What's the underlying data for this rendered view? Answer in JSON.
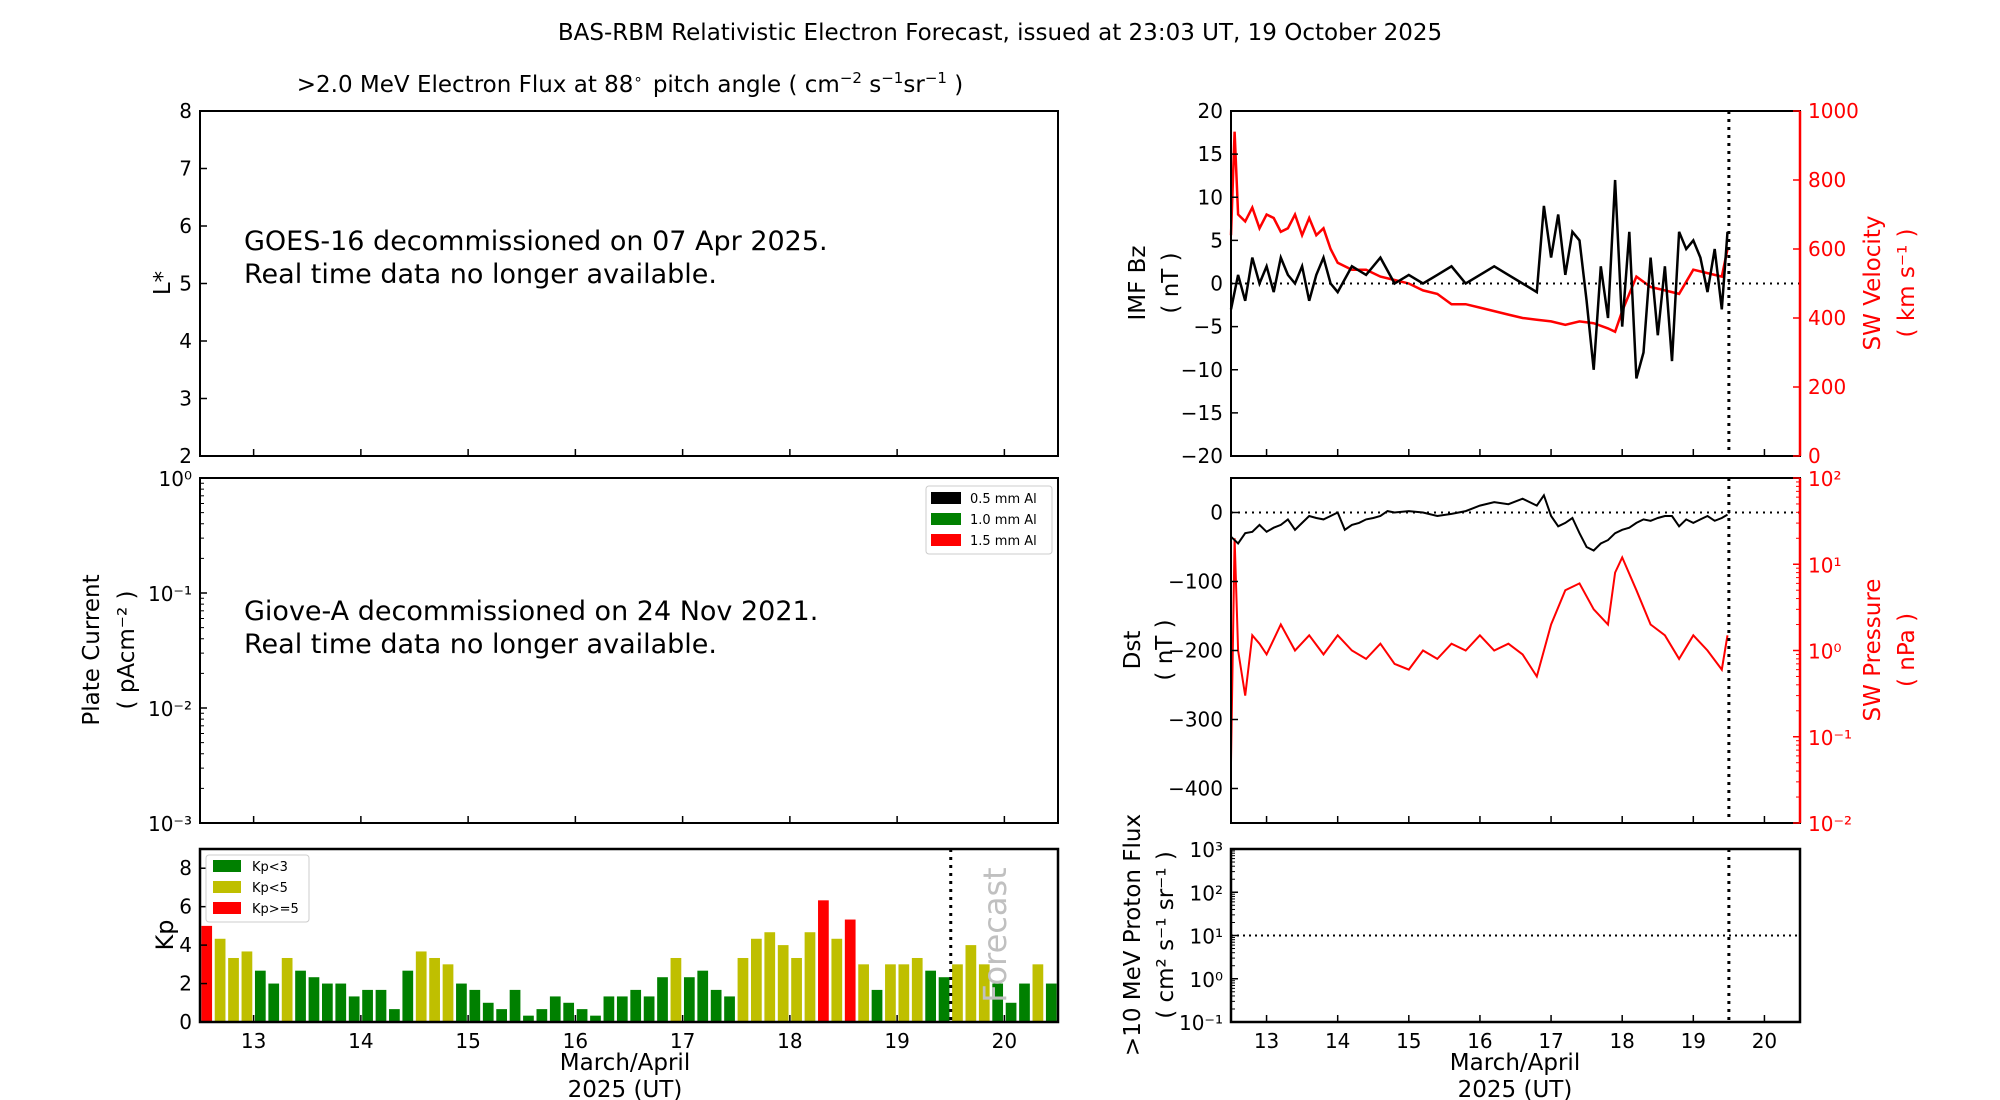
{
  "figure": {
    "title": "BAS-RBM Relativistic Electron Forecast, issued at 23:03 UT, 19 October 2025",
    "xlabel_line1": "March/April",
    "xlabel_line2": "2025 (UT)",
    "forecast_label": "Forecast",
    "now_marker_x": 19.5
  },
  "chart_data": [
    {
      "id": "electron_flux",
      "type": "heatmap",
      "title": ">2.0 MeV Electron Flux at 88° pitch angle ( cm⁻² s⁻¹ sr⁻¹ )",
      "title_main": ">2.0 MeV Electron Flux at 88",
      "title_deg": "∘",
      "title_units": "pitch angle ( cm",
      "ylabel": "L*",
      "ylim": [
        2,
        8
      ],
      "yticks": [
        2,
        3,
        4,
        5,
        6,
        7,
        8
      ],
      "xlim": [
        12.5,
        20.5
      ],
      "message_line1": "GOES-16 decommissioned on 07 Apr 2025.",
      "message_line2": "Real time data no longer available."
    },
    {
      "id": "plate_current",
      "type": "line",
      "ylabel": "Plate Current",
      "yunits": "( pAcm⁻² )",
      "yscale": "log",
      "ylim": [
        0.001,
        1
      ],
      "yticks": [
        "10⁻³",
        "10⁻²",
        "10⁻¹",
        "10⁰"
      ],
      "xlim": [
        12.5,
        20.5
      ],
      "legend": [
        "0.5 mm Al",
        "1.0 mm Al",
        "1.5 mm Al"
      ],
      "legend_colors": [
        "#000000",
        "#008000",
        "#ff0000"
      ],
      "legend_position": "top-right",
      "message_line1": "Giove-A decommissioned on 24 Nov 2021.",
      "message_line2": "Real time data no longer available."
    },
    {
      "id": "kp",
      "type": "bar",
      "ylabel": "Kp",
      "ylim": [
        0,
        9
      ],
      "yticks": [
        0,
        2,
        4,
        6,
        8
      ],
      "xlim": [
        12.5,
        20.5
      ],
      "xticks": [
        13,
        14,
        15,
        16,
        17,
        18,
        19,
        20
      ],
      "bar_step_days": 0.125,
      "x_start": 12.5,
      "legend": [
        {
          "label": "Kp<3",
          "color": "#008000"
        },
        {
          "label": "Kp<5",
          "color": "#bfbf00"
        },
        {
          "label": "Kp>=5",
          "color": "#ff0000"
        }
      ],
      "legend_position": "top-left",
      "values": [
        5.0,
        4.33,
        3.33,
        3.67,
        2.67,
        2.0,
        3.33,
        2.67,
        2.33,
        2.0,
        2.0,
        1.33,
        1.67,
        1.67,
        0.67,
        2.67,
        3.67,
        3.33,
        3.0,
        2.0,
        1.67,
        1.0,
        0.67,
        1.67,
        0.33,
        0.67,
        1.33,
        1.0,
        0.67,
        0.33,
        1.33,
        1.33,
        1.67,
        1.33,
        2.33,
        3.33,
        2.33,
        2.67,
        1.67,
        1.33,
        3.33,
        4.33,
        4.67,
        4.0,
        3.33,
        4.67,
        6.33,
        4.33,
        5.33,
        3.0,
        1.67,
        3.0,
        3.0,
        3.33,
        2.67,
        2.33,
        3.0,
        4.0,
        3.0,
        2.0,
        1.0,
        2.0,
        3.0,
        2.0
      ]
    },
    {
      "id": "imf_sw",
      "type": "line",
      "ylabel": "IMF Bz",
      "yunits": "( nT )",
      "ylim": [
        -20,
        20
      ],
      "yticks": [
        -20,
        -15,
        -10,
        -5,
        0,
        5,
        10,
        15,
        20
      ],
      "ylabel_right": "SW Velocity",
      "yunits_right": "( km s⁻¹ )",
      "ylim_right": [
        0,
        1000
      ],
      "yticks_right": [
        0,
        200,
        400,
        600,
        800,
        1000
      ],
      "xlim": [
        12.5,
        20.5
      ],
      "series": [
        {
          "name": "IMF Bz",
          "color": "#000000",
          "axis": "left",
          "x": [
            12.5,
            12.6,
            12.7,
            12.8,
            12.9,
            13.0,
            13.1,
            13.2,
            13.3,
            13.4,
            13.5,
            13.6,
            13.7,
            13.8,
            13.9,
            14.0,
            14.2,
            14.4,
            14.6,
            14.8,
            15.0,
            15.2,
            15.4,
            15.6,
            15.8,
            16.0,
            16.2,
            16.4,
            16.6,
            16.8,
            16.9,
            17.0,
            17.1,
            17.2,
            17.3,
            17.4,
            17.5,
            17.6,
            17.7,
            17.8,
            17.9,
            18.0,
            18.1,
            18.2,
            18.3,
            18.4,
            18.5,
            18.6,
            18.7,
            18.8,
            18.9,
            19.0,
            19.1,
            19.2,
            19.3,
            19.4,
            19.48
          ],
          "y": [
            -3,
            1,
            -2,
            3,
            0,
            2,
            -1,
            3,
            1,
            0,
            2,
            -2,
            1,
            3,
            0,
            -1,
            2,
            1,
            3,
            0,
            1,
            0,
            1,
            2,
            0,
            1,
            2,
            1,
            0,
            -1,
            9,
            3,
            8,
            1,
            6,
            5,
            -2,
            -10,
            2,
            -4,
            12,
            -5,
            6,
            -11,
            -8,
            3,
            -6,
            2,
            -9,
            6,
            4,
            5,
            3,
            -1,
            4,
            -3,
            6
          ]
        },
        {
          "name": "SW Velocity",
          "color": "#ff0000",
          "axis": "right",
          "x": [
            12.5,
            12.55,
            12.6,
            12.7,
            12.8,
            12.9,
            13.0,
            13.1,
            13.2,
            13.3,
            13.4,
            13.5,
            13.6,
            13.7,
            13.8,
            13.9,
            14.0,
            14.2,
            14.4,
            14.6,
            14.8,
            15.0,
            15.2,
            15.4,
            15.6,
            15.8,
            16.0,
            16.2,
            16.4,
            16.6,
            16.8,
            17.0,
            17.2,
            17.4,
            17.6,
            17.8,
            17.9,
            18.0,
            18.2,
            18.4,
            18.6,
            18.8,
            19.0,
            19.2,
            19.4,
            19.48
          ],
          "y": [
            640,
            940,
            700,
            680,
            720,
            660,
            700,
            690,
            650,
            660,
            700,
            640,
            690,
            640,
            660,
            600,
            560,
            540,
            540,
            520,
            510,
            500,
            480,
            470,
            440,
            440,
            430,
            420,
            410,
            400,
            395,
            390,
            380,
            390,
            385,
            370,
            360,
            420,
            520,
            490,
            480,
            470,
            540,
            530,
            520,
            600
          ]
        }
      ]
    },
    {
      "id": "dst_pressure",
      "type": "line",
      "ylabel": "Dst",
      "yunits": "( nT )",
      "ylim": [
        -450,
        50
      ],
      "yticks": [
        -400,
        -300,
        -200,
        -100,
        0
      ],
      "ylabel_right": "SW Pressure",
      "yunits_right": "( nPa )",
      "yscale_right": "log",
      "ylim_right": [
        0.01,
        100
      ],
      "yticks_right": [
        "10⁻²",
        "10⁻¹",
        "10⁰",
        "10¹",
        "10²"
      ],
      "xlim": [
        12.5,
        20.5
      ],
      "series": [
        {
          "name": "Dst",
          "color": "#000000",
          "axis": "left",
          "x": [
            12.5,
            12.6,
            12.7,
            12.8,
            12.9,
            13.0,
            13.1,
            13.2,
            13.3,
            13.4,
            13.5,
            13.6,
            13.7,
            13.8,
            13.9,
            14.0,
            14.1,
            14.2,
            14.3,
            14.4,
            14.5,
            14.6,
            14.7,
            14.8,
            15.0,
            15.2,
            15.4,
            15.6,
            15.8,
            16.0,
            16.2,
            16.4,
            16.6,
            16.8,
            16.9,
            17.0,
            17.1,
            17.2,
            17.3,
            17.4,
            17.5,
            17.6,
            17.7,
            17.8,
            17.9,
            18.0,
            18.1,
            18.2,
            18.3,
            18.4,
            18.5,
            18.6,
            18.7,
            18.8,
            18.9,
            19.0,
            19.1,
            19.2,
            19.3,
            19.4,
            19.48
          ],
          "y": [
            -35,
            -45,
            -30,
            -28,
            -18,
            -28,
            -22,
            -18,
            -10,
            -25,
            -15,
            -5,
            -8,
            -10,
            -5,
            0,
            -25,
            -18,
            -15,
            -10,
            -8,
            -5,
            2,
            0,
            2,
            0,
            -5,
            -2,
            2,
            10,
            15,
            12,
            20,
            10,
            25,
            -5,
            -20,
            -15,
            -8,
            -30,
            -50,
            -55,
            -45,
            -40,
            -30,
            -25,
            -22,
            -15,
            -10,
            -12,
            -8,
            -5,
            -5,
            -20,
            -10,
            -15,
            -10,
            -5,
            -12,
            -8,
            -3
          ]
        },
        {
          "name": "SW Pressure",
          "color": "#ff0000",
          "axis": "right",
          "x": [
            12.5,
            12.55,
            12.6,
            12.7,
            12.8,
            12.9,
            13.0,
            13.2,
            13.4,
            13.6,
            13.8,
            14.0,
            14.2,
            14.4,
            14.6,
            14.8,
            15.0,
            15.2,
            15.4,
            15.6,
            15.8,
            16.0,
            16.2,
            16.4,
            16.6,
            16.8,
            17.0,
            17.2,
            17.4,
            17.6,
            17.8,
            17.9,
            18.0,
            18.2,
            18.4,
            18.6,
            18.8,
            19.0,
            19.2,
            19.4,
            19.48
          ],
          "y": [
            0.05,
            20,
            1.0,
            0.3,
            1.5,
            1.2,
            0.9,
            2.0,
            1.0,
            1.5,
            0.9,
            1.5,
            1.0,
            0.8,
            1.2,
            0.7,
            0.6,
            1.0,
            0.8,
            1.2,
            1.0,
            1.5,
            1.0,
            1.2,
            0.9,
            0.5,
            2.0,
            5.0,
            6.0,
            3.0,
            2.0,
            8.0,
            12,
            5.0,
            2.0,
            1.5,
            0.8,
            1.5,
            1.0,
            0.6,
            1.5
          ]
        }
      ]
    },
    {
      "id": "proton_flux",
      "type": "line",
      "ylabel": ">10 MeV Proton Flux",
      "yunits": "( cm² s⁻¹ sr⁻¹ )",
      "yscale": "log",
      "ylim": [
        0.1,
        1000
      ],
      "yticks": [
        "10⁻¹",
        "10⁰",
        "10¹",
        "10²",
        "10³"
      ],
      "threshold": 10,
      "xlim": [
        12.5,
        20.5
      ],
      "xticks": [
        13,
        14,
        15,
        16,
        17,
        18,
        19,
        20
      ]
    }
  ]
}
